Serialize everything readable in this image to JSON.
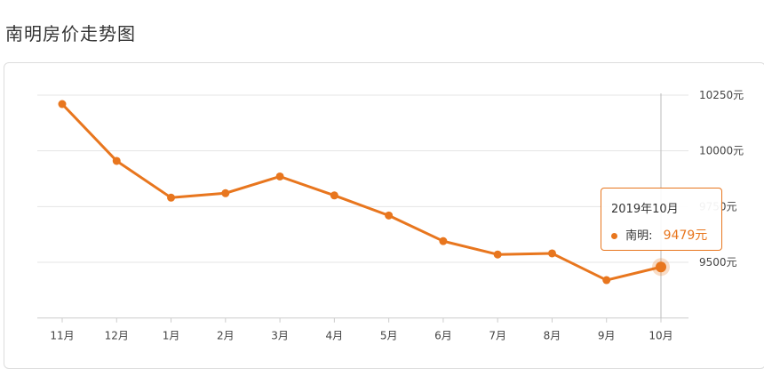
{
  "page": {
    "title": "南明房价走势图"
  },
  "tooltip": {
    "title": "2019年10月",
    "series_label": "南明:",
    "value": "9479元"
  },
  "colors": {
    "series": "#e8761e",
    "grid": "#e5e5e5",
    "axis": "#cccccc"
  },
  "chart_data": {
    "type": "line",
    "categories": [
      "11月",
      "12月",
      "1月",
      "2月",
      "3月",
      "4月",
      "5月",
      "6月",
      "7月",
      "8月",
      "9月",
      "10月"
    ],
    "series": [
      {
        "name": "南明",
        "values": [
          10210,
          9955,
          9790,
          9810,
          9885,
          9800,
          9710,
          9595,
          9535,
          9540,
          9420,
          9479
        ]
      }
    ],
    "y_axis": {
      "ticks": [
        9500,
        9750,
        10000,
        10250
      ],
      "tick_suffix": "元",
      "position": "right"
    },
    "ylim": [
      9250,
      10250
    ],
    "grid": true,
    "highlighted_index": 11
  }
}
